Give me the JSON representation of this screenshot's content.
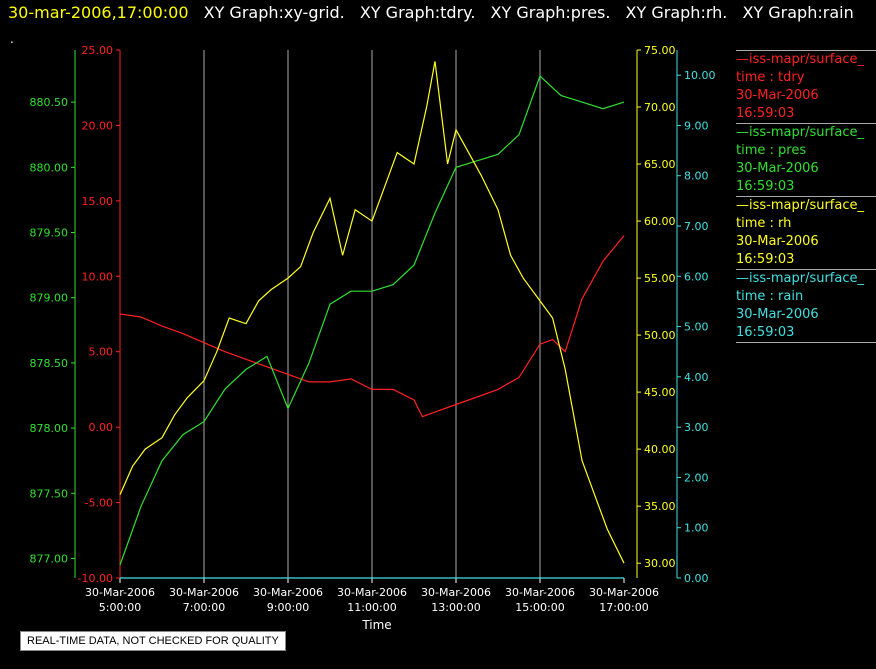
{
  "header": {
    "timestamp": "30-mar-2006,17:00:00",
    "graphs": [
      "XY Graph:xy-grid.",
      "XY Graph:tdry.",
      "XY Graph:pres.",
      "XY Graph:rh.",
      "XY Graph:rain"
    ]
  },
  "dot": ".",
  "colors": {
    "tdry": "#ff2020",
    "pres": "#30e030",
    "rh": "#ffff20",
    "rain": "#40e0e0",
    "grid": "#aaaaaa"
  },
  "legend": [
    {
      "source": "—iss-mapr/surface_",
      "var": "time : tdry",
      "date": "30-Mar-2006",
      "time": "16:59:03",
      "color": "#ff2020"
    },
    {
      "source": "—iss-mapr/surface_",
      "var": "time : pres",
      "date": "30-Mar-2006",
      "time": "16:59:03",
      "color": "#30e030"
    },
    {
      "source": "—iss-mapr/surface_",
      "var": "time : rh",
      "date": "30-Mar-2006",
      "time": "16:59:03",
      "color": "#ffff20"
    },
    {
      "source": "—iss-mapr/surface_",
      "var": "time : rain",
      "date": "30-Mar-2006",
      "time": "16:59:03",
      "color": "#40e0e0"
    }
  ],
  "note": "REAL-TIME DATA, NOT CHECKED FOR QUALITY",
  "chart_data": {
    "type": "line",
    "xlabel": "Time",
    "xlim": [
      5,
      17
    ],
    "x_ticks": [
      {
        "value": 5,
        "date": "30-Mar-2006",
        "time": "5:00:00"
      },
      {
        "value": 7,
        "date": "30-Mar-2006",
        "time": "7:00:00"
      },
      {
        "value": 9,
        "date": "30-Mar-2006",
        "time": "9:00:00"
      },
      {
        "value": 11,
        "date": "30-Mar-2006",
        "time": "11:00:00"
      },
      {
        "value": 13,
        "date": "30-Mar-2006",
        "time": "13:00:00"
      },
      {
        "value": 15,
        "date": "30-Mar-2006",
        "time": "15:00:00"
      },
      {
        "value": 17,
        "date": "30-Mar-2006",
        "time": "17:00:00"
      }
    ],
    "axes": {
      "pres": {
        "range": [
          876.85,
          880.9
        ],
        "ticks": [
          "877.00",
          "877.50",
          "878.00",
          "878.50",
          "879.00",
          "879.50",
          "880.00",
          "880.50"
        ]
      },
      "tdry": {
        "range": [
          -10,
          25
        ],
        "ticks": [
          "-10.00",
          "-5.00",
          "0.00",
          "5.00",
          "10.00",
          "15.00",
          "20.00",
          "25.00"
        ]
      },
      "rh": {
        "range": [
          28.7,
          75
        ],
        "ticks": [
          "30.00",
          "35.00",
          "40.00",
          "45.00",
          "50.00",
          "55.00",
          "60.00",
          "65.00",
          "70.00",
          "75.00"
        ]
      },
      "rain": {
        "range": [
          0,
          10.5
        ],
        "ticks": [
          "0.00",
          "1.00",
          "2.00",
          "3.00",
          "4.00",
          "5.00",
          "6.00",
          "7.00",
          "8.00",
          "9.00",
          "10.00"
        ]
      }
    },
    "series": [
      {
        "key": "tdry",
        "x": [
          5,
          5.5,
          6,
          6.5,
          7,
          7.5,
          8,
          8.5,
          9,
          9.5,
          10,
          10.5,
          11,
          11.5,
          12,
          12.2,
          12.5,
          13,
          13.5,
          14,
          14.5,
          15,
          15.3,
          15.6,
          16,
          16.5,
          17
        ],
        "y": [
          7.5,
          7.3,
          6.7,
          6.2,
          5.6,
          5.0,
          4.5,
          4.0,
          3.5,
          3.0,
          3.0,
          3.2,
          2.5,
          2.5,
          1.8,
          0.7,
          1.0,
          1.5,
          2.0,
          2.5,
          3.3,
          5.5,
          5.8,
          5.0,
          8.5,
          11.0,
          12.7
        ]
      },
      {
        "key": "pres",
        "x": [
          5,
          5.5,
          6,
          6.5,
          7,
          7.5,
          8,
          8.5,
          9,
          9.5,
          10,
          10.5,
          11,
          11.5,
          12,
          12.5,
          13,
          13.5,
          14,
          14.5,
          15,
          15.5,
          16,
          16.5,
          17
        ],
        "y": [
          876.95,
          877.4,
          877.75,
          877.95,
          878.05,
          878.3,
          878.45,
          878.55,
          878.15,
          878.5,
          878.95,
          879.05,
          879.05,
          879.1,
          879.25,
          879.65,
          880.0,
          880.05,
          880.1,
          880.25,
          880.7,
          880.55,
          880.5,
          880.45,
          880.5
        ]
      },
      {
        "key": "rh",
        "x": [
          5,
          5.3,
          5.6,
          6,
          6.3,
          6.6,
          7,
          7.3,
          7.6,
          8,
          8.3,
          8.6,
          9,
          9.3,
          9.6,
          10,
          10.3,
          10.6,
          11,
          11.3,
          11.6,
          12,
          12.3,
          12.5,
          12.8,
          13,
          13.3,
          13.6,
          14,
          14.3,
          14.6,
          15,
          15.3,
          15.6,
          16,
          16.3,
          16.6,
          17
        ],
        "y": [
          36,
          38.5,
          40,
          41,
          43,
          44.5,
          46,
          48.5,
          51.5,
          51,
          53,
          54,
          55,
          56,
          59,
          62,
          57,
          61,
          60,
          63,
          66,
          65,
          70,
          74,
          65,
          68,
          66,
          64,
          61,
          57,
          55,
          53,
          51.5,
          47,
          39,
          36,
          33,
          30
        ]
      },
      {
        "key": "rain",
        "x": [
          5,
          17
        ],
        "y": [
          0,
          0
        ]
      }
    ]
  }
}
